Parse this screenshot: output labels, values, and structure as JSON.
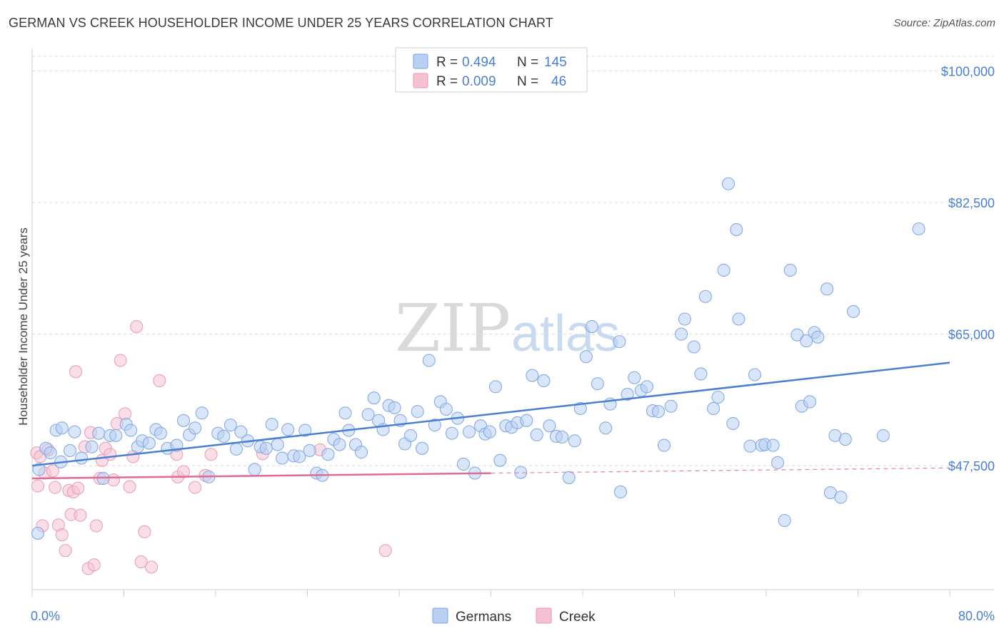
{
  "title": "GERMAN VS CREEK HOUSEHOLDER INCOME UNDER 25 YEARS CORRELATION CHART",
  "source": "Source: ZipAtlas.com",
  "watermark": {
    "zip": "ZIP",
    "atlas": "atlas"
  },
  "colors": {
    "blue": "#4a7fd0",
    "blue_fill": "#b9d0f2",
    "pink": "#e06b96",
    "pink_fill": "#f6c2d3",
    "grid": "#dcdcdc",
    "axis_text": "#4a7fd0"
  },
  "legend_box": {
    "rows": [
      {
        "r_label": "R =",
        "r_value": "0.494",
        "n_label": "N =",
        "n_value": "145"
      },
      {
        "r_label": "R =",
        "r_value": "0.009",
        "n_label": "N =",
        "n_value": "46"
      }
    ]
  },
  "chart_data": {
    "type": "scatter",
    "title": "GERMAN VS CREEK HOUSEHOLDER INCOME UNDER 25 YEARS CORRELATION CHART",
    "xlabel": "",
    "ylabel": "Householder Income Under 25 years",
    "xlim": [
      0,
      80
    ],
    "ylim": [
      31000,
      103000
    ],
    "x_tick_labels": [
      "0.0%",
      "80.0%"
    ],
    "y_ticks": [
      47500,
      65000,
      82500,
      100000
    ],
    "y_tick_labels": [
      "$47,500",
      "$65,000",
      "$82,500",
      "$100,000"
    ],
    "grid": "horizontal dashed",
    "legend_position": "bottom-center",
    "series": [
      {
        "name": "Germans",
        "trend": {
          "x": [
            0,
            80
          ],
          "y": [
            47500,
            61200
          ],
          "style": "solid"
        },
        "points": [
          [
            0.5,
            38500
          ],
          [
            0.6,
            47000
          ],
          [
            1.2,
            49800
          ],
          [
            1.6,
            49200
          ],
          [
            2.1,
            52200
          ],
          [
            2.5,
            48000
          ],
          [
            2.6,
            52500
          ],
          [
            3.3,
            49500
          ],
          [
            3.7,
            52000
          ],
          [
            4.3,
            48500
          ],
          [
            5.2,
            50000
          ],
          [
            5.8,
            51800
          ],
          [
            6.2,
            45800
          ],
          [
            6.8,
            51500
          ],
          [
            7.3,
            51500
          ],
          [
            8.2,
            53000
          ],
          [
            8.6,
            52200
          ],
          [
            9.2,
            50000
          ],
          [
            9.6,
            50800
          ],
          [
            10.2,
            50500
          ],
          [
            10.8,
            52300
          ],
          [
            11.2,
            51800
          ],
          [
            11.8,
            49800
          ],
          [
            12.6,
            50200
          ],
          [
            13.2,
            53500
          ],
          [
            13.7,
            51600
          ],
          [
            14.2,
            52500
          ],
          [
            14.8,
            54500
          ],
          [
            15.4,
            46000
          ],
          [
            16.2,
            51800
          ],
          [
            16.7,
            51400
          ],
          [
            17.3,
            52900
          ],
          [
            17.8,
            49700
          ],
          [
            18.2,
            52000
          ],
          [
            18.8,
            50800
          ],
          [
            19.4,
            47000
          ],
          [
            19.9,
            50000
          ],
          [
            20.4,
            49800
          ],
          [
            20.9,
            53000
          ],
          [
            21.4,
            50300
          ],
          [
            21.8,
            48500
          ],
          [
            22.3,
            52300
          ],
          [
            22.8,
            48800
          ],
          [
            23.3,
            48700
          ],
          [
            23.8,
            52200
          ],
          [
            24.2,
            49500
          ],
          [
            24.8,
            46500
          ],
          [
            25.3,
            46200
          ],
          [
            25.8,
            49000
          ],
          [
            26.3,
            51000
          ],
          [
            26.8,
            50300
          ],
          [
            27.3,
            54500
          ],
          [
            27.6,
            52200
          ],
          [
            28.2,
            50300
          ],
          [
            28.7,
            49300
          ],
          [
            29.3,
            54300
          ],
          [
            29.8,
            56500
          ],
          [
            30.2,
            53500
          ],
          [
            30.6,
            52300
          ],
          [
            31.1,
            55500
          ],
          [
            31.6,
            55200
          ],
          [
            32.1,
            53500
          ],
          [
            32.5,
            50400
          ],
          [
            33.0,
            51500
          ],
          [
            33.6,
            54700
          ],
          [
            34.0,
            49800
          ],
          [
            34.6,
            61500
          ],
          [
            35.1,
            52900
          ],
          [
            35.6,
            56000
          ],
          [
            36.1,
            55000
          ],
          [
            36.6,
            51800
          ],
          [
            37.1,
            53800
          ],
          [
            37.6,
            47700
          ],
          [
            38.1,
            52000
          ],
          [
            38.6,
            46500
          ],
          [
            39.1,
            52800
          ],
          [
            39.5,
            51700
          ],
          [
            39.9,
            52000
          ],
          [
            40.4,
            58000
          ],
          [
            40.8,
            48200
          ],
          [
            41.3,
            52800
          ],
          [
            41.8,
            52600
          ],
          [
            42.3,
            53200
          ],
          [
            42.6,
            46600
          ],
          [
            43.1,
            53500
          ],
          [
            43.6,
            59500
          ],
          [
            44.0,
            51600
          ],
          [
            44.6,
            58800
          ],
          [
            45.1,
            52800
          ],
          [
            45.7,
            51400
          ],
          [
            46.2,
            51300
          ],
          [
            46.8,
            45900
          ],
          [
            47.3,
            50800
          ],
          [
            47.8,
            55100
          ],
          [
            48.3,
            62000
          ],
          [
            48.8,
            66000
          ],
          [
            49.3,
            58400
          ],
          [
            50.0,
            52500
          ],
          [
            50.4,
            55700
          ],
          [
            51.2,
            64000
          ],
          [
            51.3,
            44000
          ],
          [
            51.9,
            57000
          ],
          [
            52.5,
            59200
          ],
          [
            53.1,
            57500
          ],
          [
            53.6,
            58000
          ],
          [
            54.1,
            54800
          ],
          [
            54.6,
            54700
          ],
          [
            55.1,
            50200
          ],
          [
            55.7,
            55400
          ],
          [
            56.6,
            65000
          ],
          [
            56.9,
            67000
          ],
          [
            57.7,
            63300
          ],
          [
            58.3,
            59700
          ],
          [
            58.7,
            70000
          ],
          [
            59.4,
            55100
          ],
          [
            59.8,
            56600
          ],
          [
            60.3,
            73500
          ],
          [
            60.7,
            85000
          ],
          [
            61.1,
            53100
          ],
          [
            61.4,
            78900
          ],
          [
            61.6,
            67000
          ],
          [
            62.6,
            50100
          ],
          [
            63.0,
            59600
          ],
          [
            63.6,
            50200
          ],
          [
            63.9,
            50300
          ],
          [
            64.6,
            50200
          ],
          [
            65.0,
            47900
          ],
          [
            65.6,
            40200
          ],
          [
            66.1,
            73500
          ],
          [
            66.7,
            64900
          ],
          [
            67.1,
            55400
          ],
          [
            67.5,
            64100
          ],
          [
            67.8,
            56000
          ],
          [
            68.2,
            65200
          ],
          [
            68.5,
            64600
          ],
          [
            69.3,
            71000
          ],
          [
            69.6,
            43900
          ],
          [
            70.0,
            51500
          ],
          [
            70.5,
            43300
          ],
          [
            70.9,
            51000
          ],
          [
            71.6,
            68000
          ],
          [
            74.2,
            51500
          ],
          [
            77.3,
            79000
          ]
        ]
      },
      {
        "name": "Creek",
        "trend": {
          "x": [
            0,
            40
          ],
          "y": [
            45800,
            46500
          ],
          "style": "solid",
          "extension": {
            "x": [
              40,
              80
            ],
            "y": [
              46500,
              47200
            ],
            "style": "dashed"
          }
        },
        "points": [
          [
            0.4,
            49200
          ],
          [
            0.5,
            44800
          ],
          [
            0.7,
            48700
          ],
          [
            0.9,
            39500
          ],
          [
            1.1,
            46500
          ],
          [
            1.4,
            49600
          ],
          [
            1.8,
            46800
          ],
          [
            2.0,
            44600
          ],
          [
            2.3,
            39600
          ],
          [
            2.6,
            38300
          ],
          [
            2.9,
            36200
          ],
          [
            3.2,
            44200
          ],
          [
            3.4,
            41000
          ],
          [
            3.6,
            44000
          ],
          [
            3.8,
            60000
          ],
          [
            4.0,
            44500
          ],
          [
            4.2,
            40900
          ],
          [
            4.6,
            50000
          ],
          [
            4.9,
            33800
          ],
          [
            5.1,
            51900
          ],
          [
            5.4,
            34300
          ],
          [
            5.6,
            39500
          ],
          [
            5.9,
            45800
          ],
          [
            6.1,
            48200
          ],
          [
            6.4,
            49800
          ],
          [
            6.8,
            49000
          ],
          [
            7.1,
            45600
          ],
          [
            7.4,
            53100
          ],
          [
            7.7,
            61500
          ],
          [
            8.1,
            54400
          ],
          [
            8.5,
            44700
          ],
          [
            8.8,
            48700
          ],
          [
            9.1,
            66000
          ],
          [
            9.5,
            34700
          ],
          [
            9.8,
            38700
          ],
          [
            10.4,
            34000
          ],
          [
            11.1,
            58800
          ],
          [
            12.6,
            49000
          ],
          [
            12.7,
            46000
          ],
          [
            13.2,
            46700
          ],
          [
            14.2,
            44600
          ],
          [
            15.1,
            46200
          ],
          [
            15.6,
            49000
          ],
          [
            20.1,
            49100
          ],
          [
            25.1,
            49600
          ],
          [
            30.8,
            36200
          ]
        ]
      }
    ]
  },
  "legend": {
    "items": [
      {
        "label": "Germans"
      },
      {
        "label": "Creek"
      }
    ]
  }
}
